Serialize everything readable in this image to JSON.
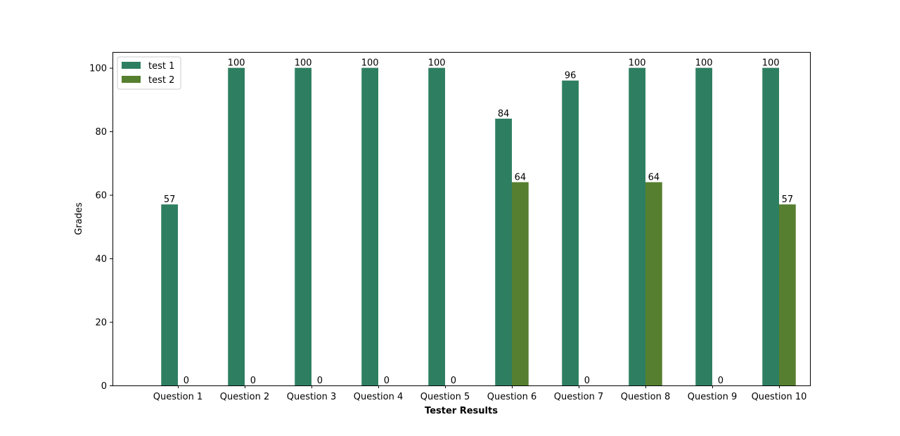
{
  "chart_data": {
    "type": "bar",
    "categories": [
      "Question 1",
      "Question 2",
      "Question 3",
      "Question 4",
      "Question 5",
      "Question 6",
      "Question 7",
      "Question 8",
      "Question 9",
      "Question 10"
    ],
    "series": [
      {
        "name": "test 1",
        "color": "#2e7f61",
        "values": [
          57,
          100,
          100,
          100,
          100,
          84,
          96,
          100,
          100,
          100
        ],
        "labels": [
          "57",
          "100",
          "100",
          "100",
          "100",
          "84",
          "96",
          "100",
          "100",
          "100"
        ]
      },
      {
        "name": "test 2",
        "color": "#567f2f",
        "values": [
          0,
          0,
          0,
          0,
          0,
          64,
          0,
          64,
          0,
          57
        ],
        "labels": [
          "0",
          "0",
          "0",
          "0",
          "0",
          "64",
          "0",
          "64",
          "0",
          "57"
        ]
      }
    ],
    "xlabel": "Tester Results",
    "ylabel": "Grades",
    "ylim": [
      0,
      105
    ],
    "yticks": [
      0,
      20,
      40,
      60,
      80,
      100
    ],
    "grid": false,
    "legend_position": "top-left"
  }
}
